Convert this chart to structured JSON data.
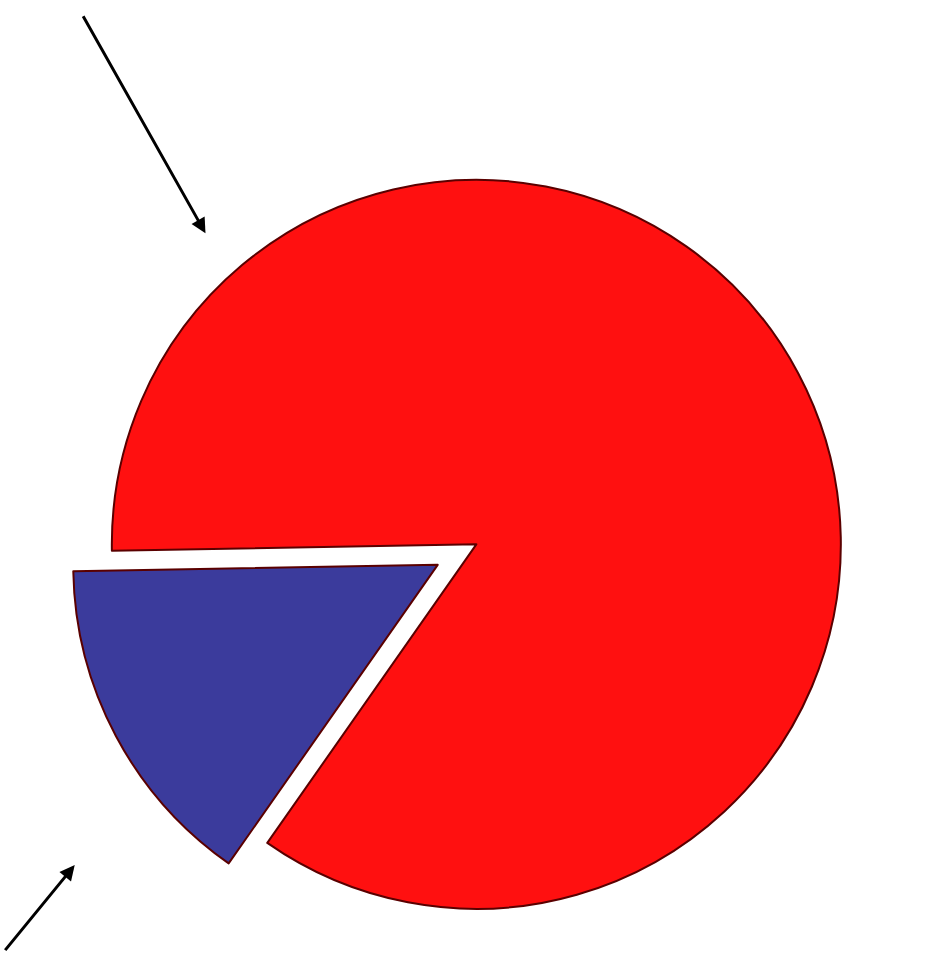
{
  "chart_data": {
    "type": "pie",
    "categories": [
      null,
      null
    ],
    "values": [
      15,
      85
    ],
    "colors": [
      "#3b3b9c",
      "#ff1010"
    ],
    "legend": false
  }
}
